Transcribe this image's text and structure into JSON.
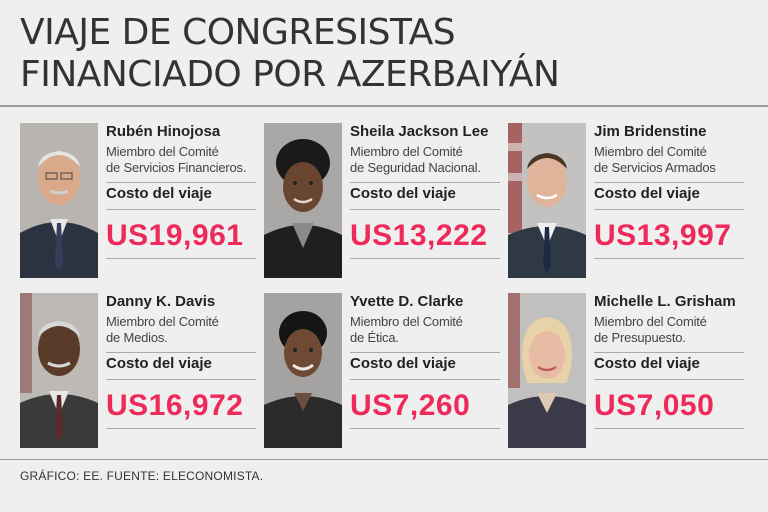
{
  "title_line1": "VIAJE DE CONGRESISTAS",
  "title_line2": "FINANCIADO POR AZERBAIYÁN",
  "cost_label": "Costo del viaje",
  "footer": "GRÁFICO: EE. FUENTE: ELECONOMISTA.",
  "cards": [
    {
      "name": "Rubén Hinojosa",
      "role_line1": "Miembro del Comité",
      "role_line2": "de Servicios Financieros.",
      "cost": "US19,961"
    },
    {
      "name": "Sheila Jackson Lee",
      "role_line1": "Miembro del Comité",
      "role_line2": "de Seguridad Nacional.",
      "cost": "US13,222"
    },
    {
      "name": "Jim Bridenstine",
      "role_line1": "Miembro del Comité",
      "role_line2": "de Servicios Armados",
      "cost": "US13,997"
    },
    {
      "name": "Danny K. Davis",
      "role_line1": "Miembro del Comité",
      "role_line2": "de Medios.",
      "cost": "US16,972"
    },
    {
      "name": "Yvette D. Clarke",
      "role_line1": "Miembro del Comité",
      "role_line2": "de Ética.",
      "cost": "US7,260"
    },
    {
      "name": "Michelle L. Grisham",
      "role_line1": "Miembro del Comité",
      "role_line2": "de Presupuesto.",
      "cost": "US7,050"
    }
  ]
}
